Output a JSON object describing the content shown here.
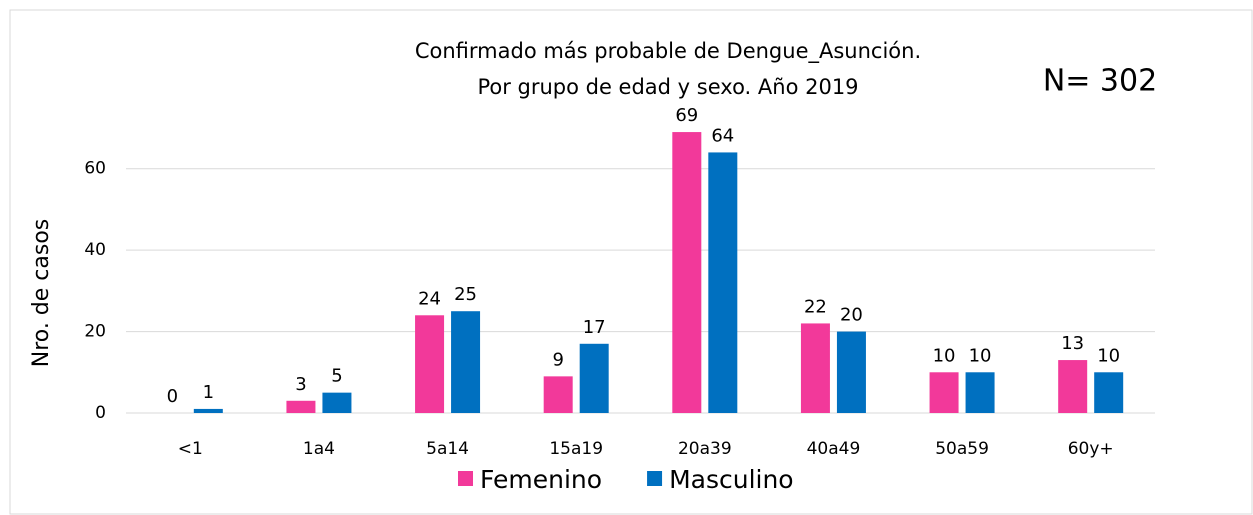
{
  "chart_data": {
    "type": "bar",
    "title": "Confirmado más probable de Dengue_Asunción.",
    "subtitle": "Por grupo de edad y sexo. Año 2019",
    "annotation": "N= 302",
    "y_label": "Nro. de casos",
    "categories": [
      "<1",
      "1a4",
      "5a14",
      "15a19",
      "20a39",
      "40a49",
      "50a59",
      "60y+"
    ],
    "series": [
      {
        "name": "Femenino",
        "color": "#f2399a",
        "values": [
          0,
          3,
          24,
          9,
          69,
          22,
          10,
          13
        ]
      },
      {
        "name": "Masculino",
        "color": "#0070c0",
        "values": [
          1,
          5,
          25,
          17,
          64,
          20,
          10,
          10
        ]
      }
    ],
    "ylim": [
      0,
      70
    ],
    "yticks": [
      0,
      20,
      40,
      60
    ],
    "grid": true,
    "legend": "bottom"
  }
}
